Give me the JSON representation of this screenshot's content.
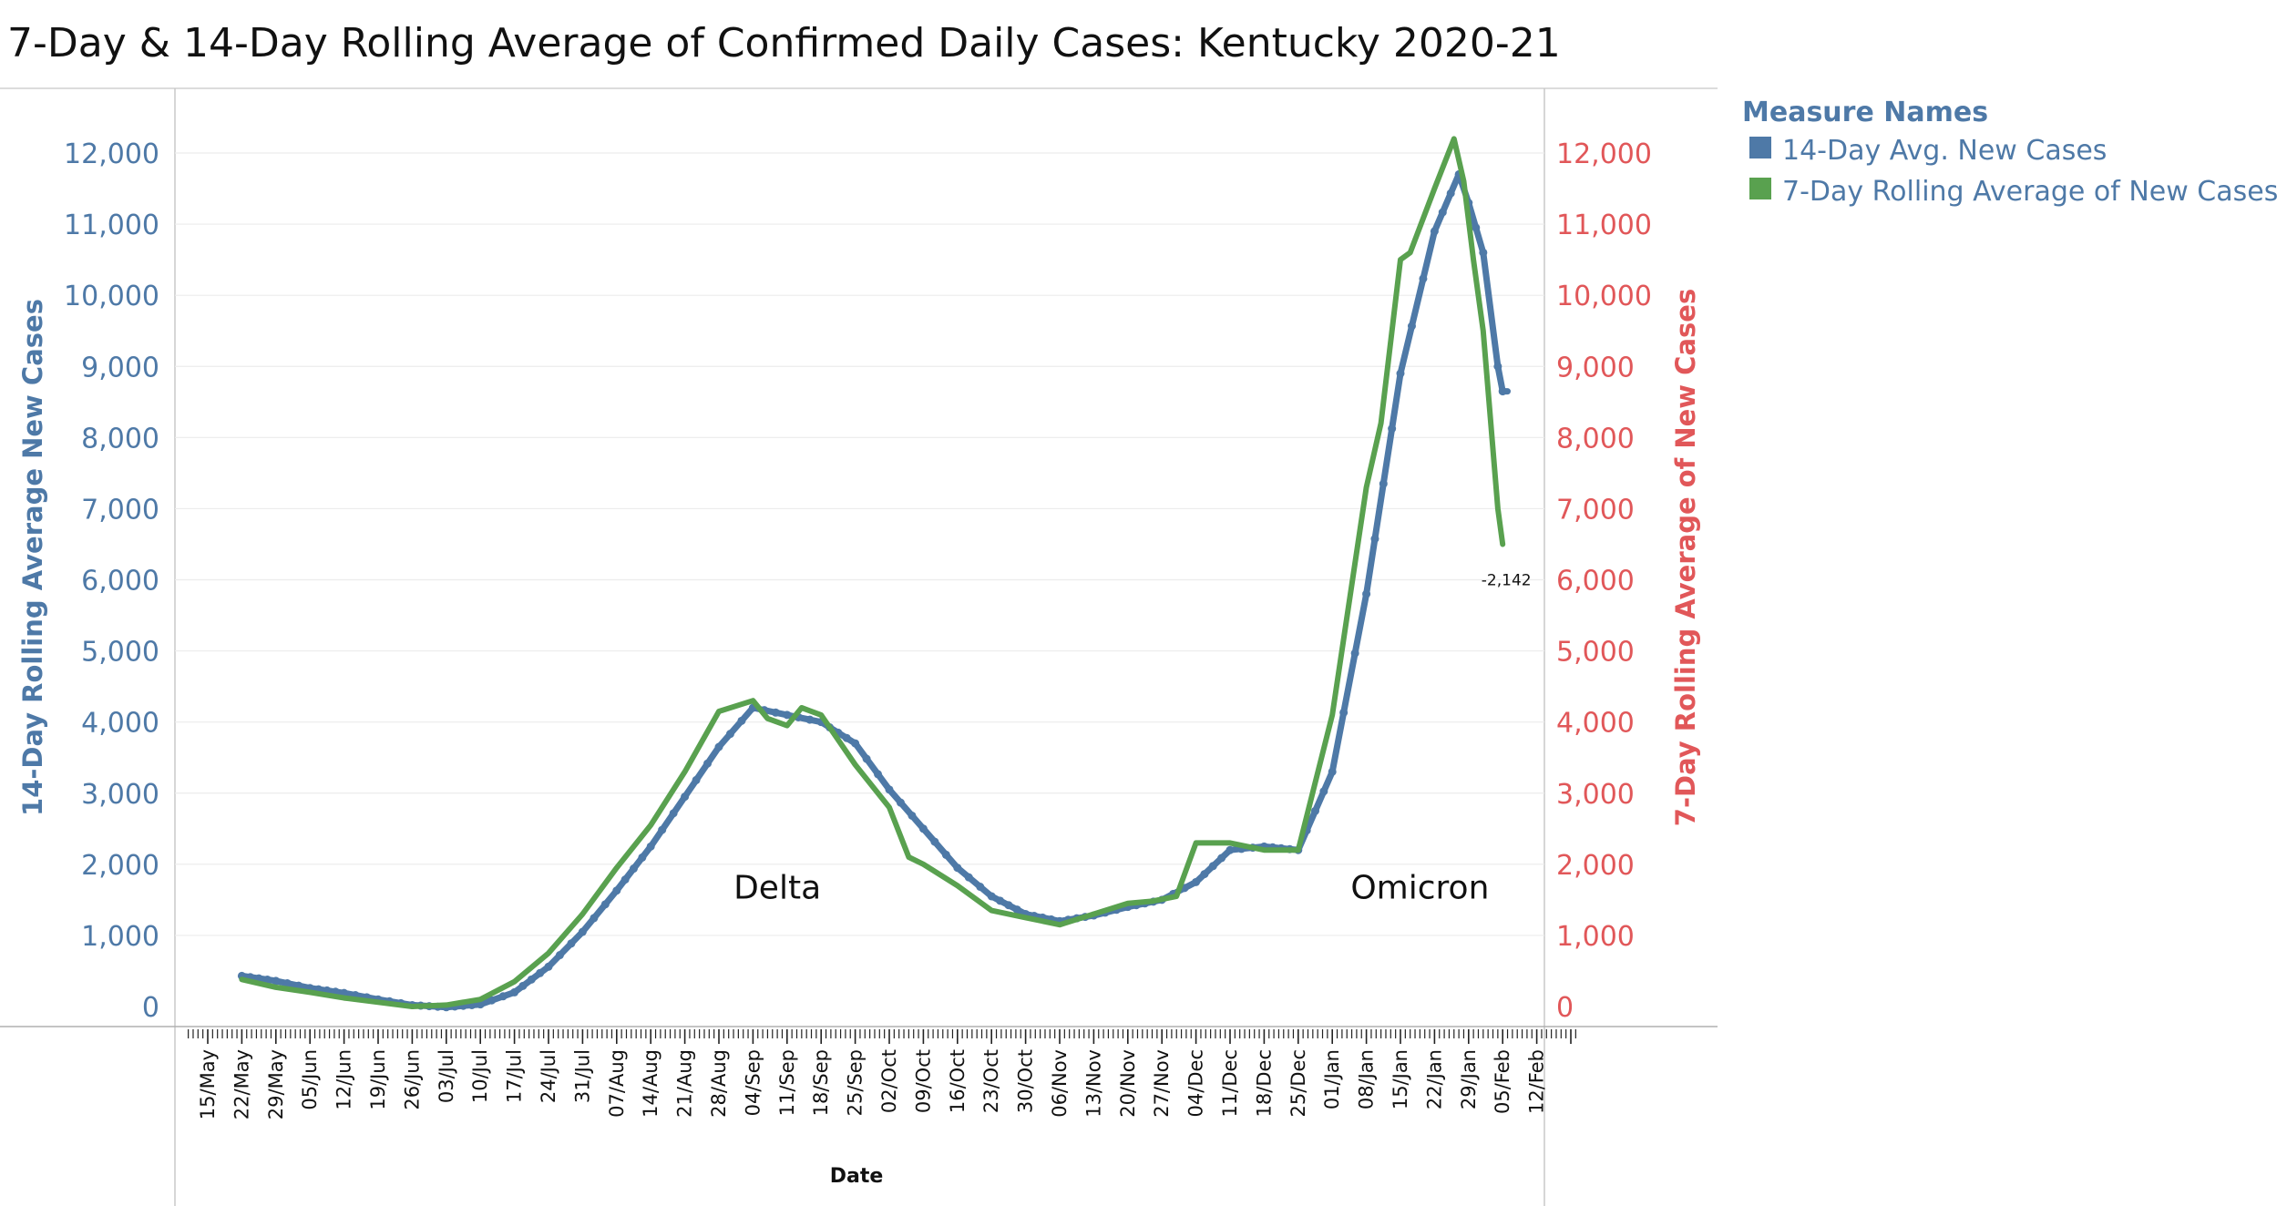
{
  "chart_data": {
    "type": "line",
    "title": "7-Day & 14-Day Rolling Average of Confirmed Daily  Cases:  Kentucky 2020-21",
    "xlabel": "Date",
    "ylabel_left": "14-Day Rolling Average New Cases",
    "ylabel_right": "7-Day Rolling  Average of New Cases",
    "ylim": [
      0,
      12700
    ],
    "y_ticks": [
      0,
      1000,
      2000,
      3000,
      4000,
      5000,
      6000,
      7000,
      8000,
      9000,
      10000,
      11000,
      12000
    ],
    "y_tick_labels": [
      "0",
      "1,000",
      "2,000",
      "3,000",
      "4,000",
      "5,000",
      "6,000",
      "7,000",
      "8,000",
      "9,000",
      "10,000",
      "11,000",
      "12,000"
    ],
    "x_ticks": [
      "15/May",
      "22/May",
      "29/May",
      "05/Jun",
      "12/Jun",
      "19/Jun",
      "26/Jun",
      "03/Jul",
      "10/Jul",
      "17/Jul",
      "24/Jul",
      "31/Jul",
      "07/Aug",
      "14/Aug",
      "21/Aug",
      "28/Aug",
      "04/Sep",
      "11/Sep",
      "18/Sep",
      "25/Sep",
      "02/Oct",
      "09/Oct",
      "16/Oct",
      "23/Oct",
      "30/Oct",
      "06/Nov",
      "13/Nov",
      "20/Nov",
      "27/Nov",
      "04/Dec",
      "11/Dec",
      "18/Dec",
      "25/Dec",
      "01/Jan",
      "08/Jan",
      "15/Jan",
      "22/Jan",
      "29/Jan",
      "05/Feb",
      "12/Feb"
    ],
    "grid": true,
    "legend": {
      "title": "Measure Names",
      "position": "top-right"
    },
    "colors": {
      "left_axis": "#4e79a7",
      "right_axis": "#e15759"
    },
    "annotations": [
      {
        "text": "Delta",
        "x": "09/Sep",
        "y": 1700
      },
      {
        "text": "Omicron",
        "x": "19/Jan",
        "y": 1700
      }
    ],
    "end_label": {
      "text": "-2,142",
      "x": "05/Feb",
      "y": 6000
    },
    "series": [
      {
        "name": "14-Day Avg. New Cases",
        "color": "#4e79a7",
        "axis": "left",
        "points": [
          [
            "22/May",
            430
          ],
          [
            "29/May",
            360
          ],
          [
            "05/Jun",
            260
          ],
          [
            "12/Jun",
            190
          ],
          [
            "19/Jun",
            100
          ],
          [
            "26/Jun",
            20
          ],
          [
            "03/Jul",
            -10
          ],
          [
            "10/Jul",
            30
          ],
          [
            "17/Jul",
            200
          ],
          [
            "24/Jul",
            560
          ],
          [
            "31/Jul",
            1050
          ],
          [
            "07/Aug",
            1630
          ],
          [
            "14/Aug",
            2250
          ],
          [
            "21/Aug",
            2950
          ],
          [
            "28/Aug",
            3650
          ],
          [
            "04/Sep",
            4200
          ],
          [
            "11/Sep",
            4100
          ],
          [
            "18/Sep",
            4000
          ],
          [
            "25/Sep",
            3700
          ],
          [
            "02/Oct",
            3050
          ],
          [
            "09/Oct",
            2500
          ],
          [
            "16/Oct",
            1950
          ],
          [
            "23/Oct",
            1550
          ],
          [
            "30/Oct",
            1300
          ],
          [
            "06/Nov",
            1200
          ],
          [
            "13/Nov",
            1280
          ],
          [
            "20/Nov",
            1400
          ],
          [
            "27/Nov",
            1500
          ],
          [
            "04/Dec",
            1750
          ],
          [
            "11/Dec",
            2200
          ],
          [
            "18/Dec",
            2250
          ],
          [
            "25/Dec",
            2200
          ],
          [
            "01/Jan",
            3300
          ],
          [
            "08/Jan",
            5800
          ],
          [
            "15/Jan",
            8900
          ],
          [
            "22/Jan",
            10900
          ],
          [
            "27/Jan",
            11700
          ],
          [
            "29/Jan",
            11300
          ],
          [
            "01/Feb",
            10600
          ],
          [
            "04/Feb",
            9000
          ],
          [
            "05/Feb",
            8650
          ],
          [
            "06/Feb",
            8650
          ]
        ]
      },
      {
        "name": "7-Day Rolling  Average of New Cases",
        "color": "#59a14f",
        "axis": "right",
        "points": [
          [
            "22/May",
            380
          ],
          [
            "29/May",
            270
          ],
          [
            "05/Jun",
            200
          ],
          [
            "12/Jun",
            120
          ],
          [
            "19/Jun",
            60
          ],
          [
            "26/Jun",
            0
          ],
          [
            "03/Jul",
            20
          ],
          [
            "10/Jul",
            100
          ],
          [
            "17/Jul",
            350
          ],
          [
            "24/Jul",
            750
          ],
          [
            "31/Jul",
            1300
          ],
          [
            "07/Aug",
            1950
          ],
          [
            "14/Aug",
            2550
          ],
          [
            "21/Aug",
            3300
          ],
          [
            "28/Aug",
            4150
          ],
          [
            "04/Sep",
            4300
          ],
          [
            "07/Sep",
            4050
          ],
          [
            "11/Sep",
            3950
          ],
          [
            "14/Sep",
            4200
          ],
          [
            "18/Sep",
            4100
          ],
          [
            "25/Sep",
            3400
          ],
          [
            "02/Oct",
            2800
          ],
          [
            "06/Oct",
            2100
          ],
          [
            "09/Oct",
            2000
          ],
          [
            "16/Oct",
            1700
          ],
          [
            "23/Oct",
            1350
          ],
          [
            "30/Oct",
            1250
          ],
          [
            "06/Nov",
            1150
          ],
          [
            "13/Nov",
            1300
          ],
          [
            "20/Nov",
            1450
          ],
          [
            "25/Nov",
            1480
          ],
          [
            "30/Nov",
            1550
          ],
          [
            "04/Dec",
            2300
          ],
          [
            "11/Dec",
            2300
          ],
          [
            "18/Dec",
            2200
          ],
          [
            "25/Dec",
            2200
          ],
          [
            "01/Jan",
            4100
          ],
          [
            "08/Jan",
            7300
          ],
          [
            "11/Jan",
            8200
          ],
          [
            "15/Jan",
            10500
          ],
          [
            "17/Jan",
            10600
          ],
          [
            "22/Jan",
            11500
          ],
          [
            "26/Jan",
            12200
          ],
          [
            "28/Jan",
            11600
          ],
          [
            "30/Jan",
            10500
          ],
          [
            "01/Feb",
            9500
          ],
          [
            "04/Feb",
            7000
          ],
          [
            "05/Feb",
            6500
          ]
        ]
      }
    ]
  }
}
